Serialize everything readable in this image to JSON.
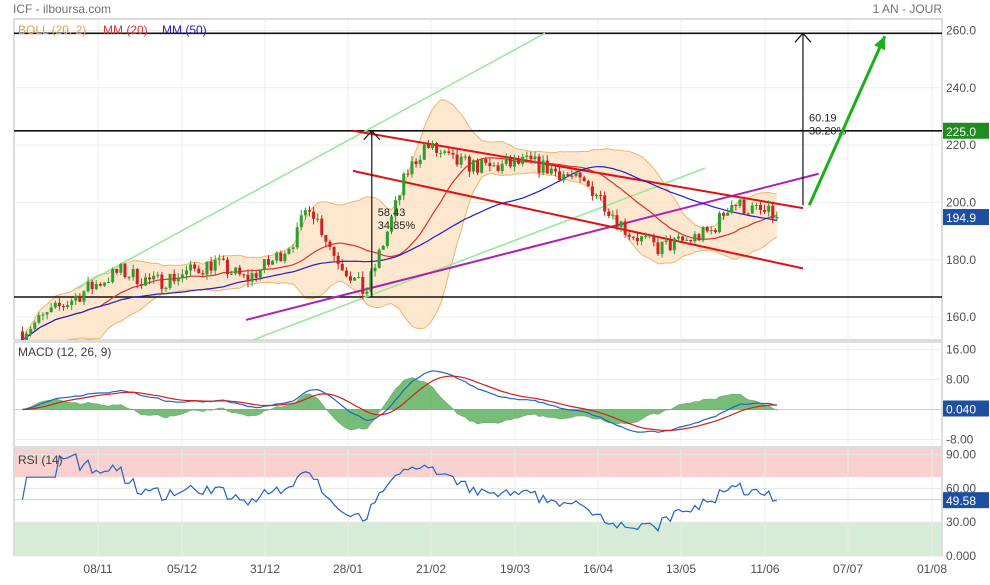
{
  "header": {
    "source": "ICF - ilboursa.com",
    "period": "1 AN - JOUR"
  },
  "colors": {
    "candle_up": "#2e9e2e",
    "candle_down": "#cc2222",
    "boll_fill": "#fde3c7",
    "boll_line": "#f2b36a",
    "mm20": "#e03030",
    "mm50": "#2020c0",
    "macd_line": "#1e64c8",
    "signal_line": "#d02020",
    "macd_hist": "#4aa84a",
    "rsi_line": "#1e64c8",
    "overbought": "#f8d0d0",
    "oversold": "#d6ecd6",
    "price_tag": "#1e4fa0",
    "level_tag": "#1e8c1e",
    "macd_tag": "#1e4fa0",
    "channel_green": "#9ae89a",
    "channel_purple": "#b020b0",
    "wedge_red": "#e01010",
    "arrow_green": "#19b019"
  },
  "chart_data": [
    {
      "type": "candlestick",
      "panel": "price",
      "legend": [
        "BOLL (20, 2)",
        "MM (20)",
        "MM (50)"
      ],
      "x_ticks": [
        "08/11",
        "05/12",
        "31/12",
        "28/01",
        "21/02",
        "19/03",
        "16/04",
        "13/05",
        "11/06",
        "07/07",
        "01/08"
      ],
      "y_ticks": [
        160,
        180,
        200,
        220,
        240,
        260
      ],
      "ylim": [
        152,
        264
      ],
      "grid": true,
      "last_price": "194.9",
      "level_label": "225.0",
      "levels": [
        259,
        225,
        167
      ],
      "annotations": [
        {
          "text": "58.43",
          "line2": "34.85%",
          "from": 167,
          "to": 225
        },
        {
          "text": "60.19",
          "line2": "30.20%",
          "from": 199,
          "to": 259
        }
      ],
      "anchors": [
        {
          "date": "2018-10-15",
          "close": 155
        },
        {
          "date": "2018-11-05",
          "close": 170
        },
        {
          "date": "2018-11-15",
          "close": 176
        },
        {
          "date": "2018-11-26",
          "close": 172
        },
        {
          "date": "2018-12-05",
          "close": 175
        },
        {
          "date": "2018-12-15",
          "close": 179
        },
        {
          "date": "2018-12-25",
          "close": 173
        },
        {
          "date": "2019-01-03",
          "close": 180
        },
        {
          "date": "2019-01-10",
          "close": 188
        },
        {
          "date": "2019-01-14",
          "close": 200
        },
        {
          "date": "2019-01-22",
          "close": 182
        },
        {
          "date": "2019-02-01",
          "close": 168
        },
        {
          "date": "2019-02-08",
          "close": 190
        },
        {
          "date": "2019-02-14",
          "close": 210
        },
        {
          "date": "2019-02-20",
          "close": 220
        },
        {
          "date": "2019-03-01",
          "close": 214
        },
        {
          "date": "2019-03-12",
          "close": 212
        },
        {
          "date": "2019-03-25",
          "close": 214
        },
        {
          "date": "2019-04-05",
          "close": 210
        },
        {
          "date": "2019-04-15",
          "close": 204
        },
        {
          "date": "2019-04-25",
          "close": 190
        },
        {
          "date": "2019-05-05",
          "close": 184
        },
        {
          "date": "2019-05-15",
          "close": 187
        },
        {
          "date": "2019-05-22",
          "close": 190
        },
        {
          "date": "2019-05-28",
          "close": 200
        },
        {
          "date": "2019-06-05",
          "close": 197
        },
        {
          "date": "2019-06-13",
          "close": 194.9
        }
      ]
    },
    {
      "type": "line",
      "panel": "macd",
      "legend": [
        "MACD (12, 26, 9)"
      ],
      "y_ticks": [
        "16.00",
        "8.00",
        "0.00",
        "-8.00"
      ],
      "ylim": [
        -10,
        18
      ],
      "last_value": "0.040"
    },
    {
      "type": "line",
      "panel": "rsi",
      "legend": [
        "RSI (14)"
      ],
      "y_ticks": [
        "90.00",
        "60.00",
        "30.00",
        "0.000"
      ],
      "ylim": [
        0,
        95
      ],
      "bands": {
        "overbought": 70,
        "oversold": 30
      },
      "last_value": "49.58"
    }
  ]
}
